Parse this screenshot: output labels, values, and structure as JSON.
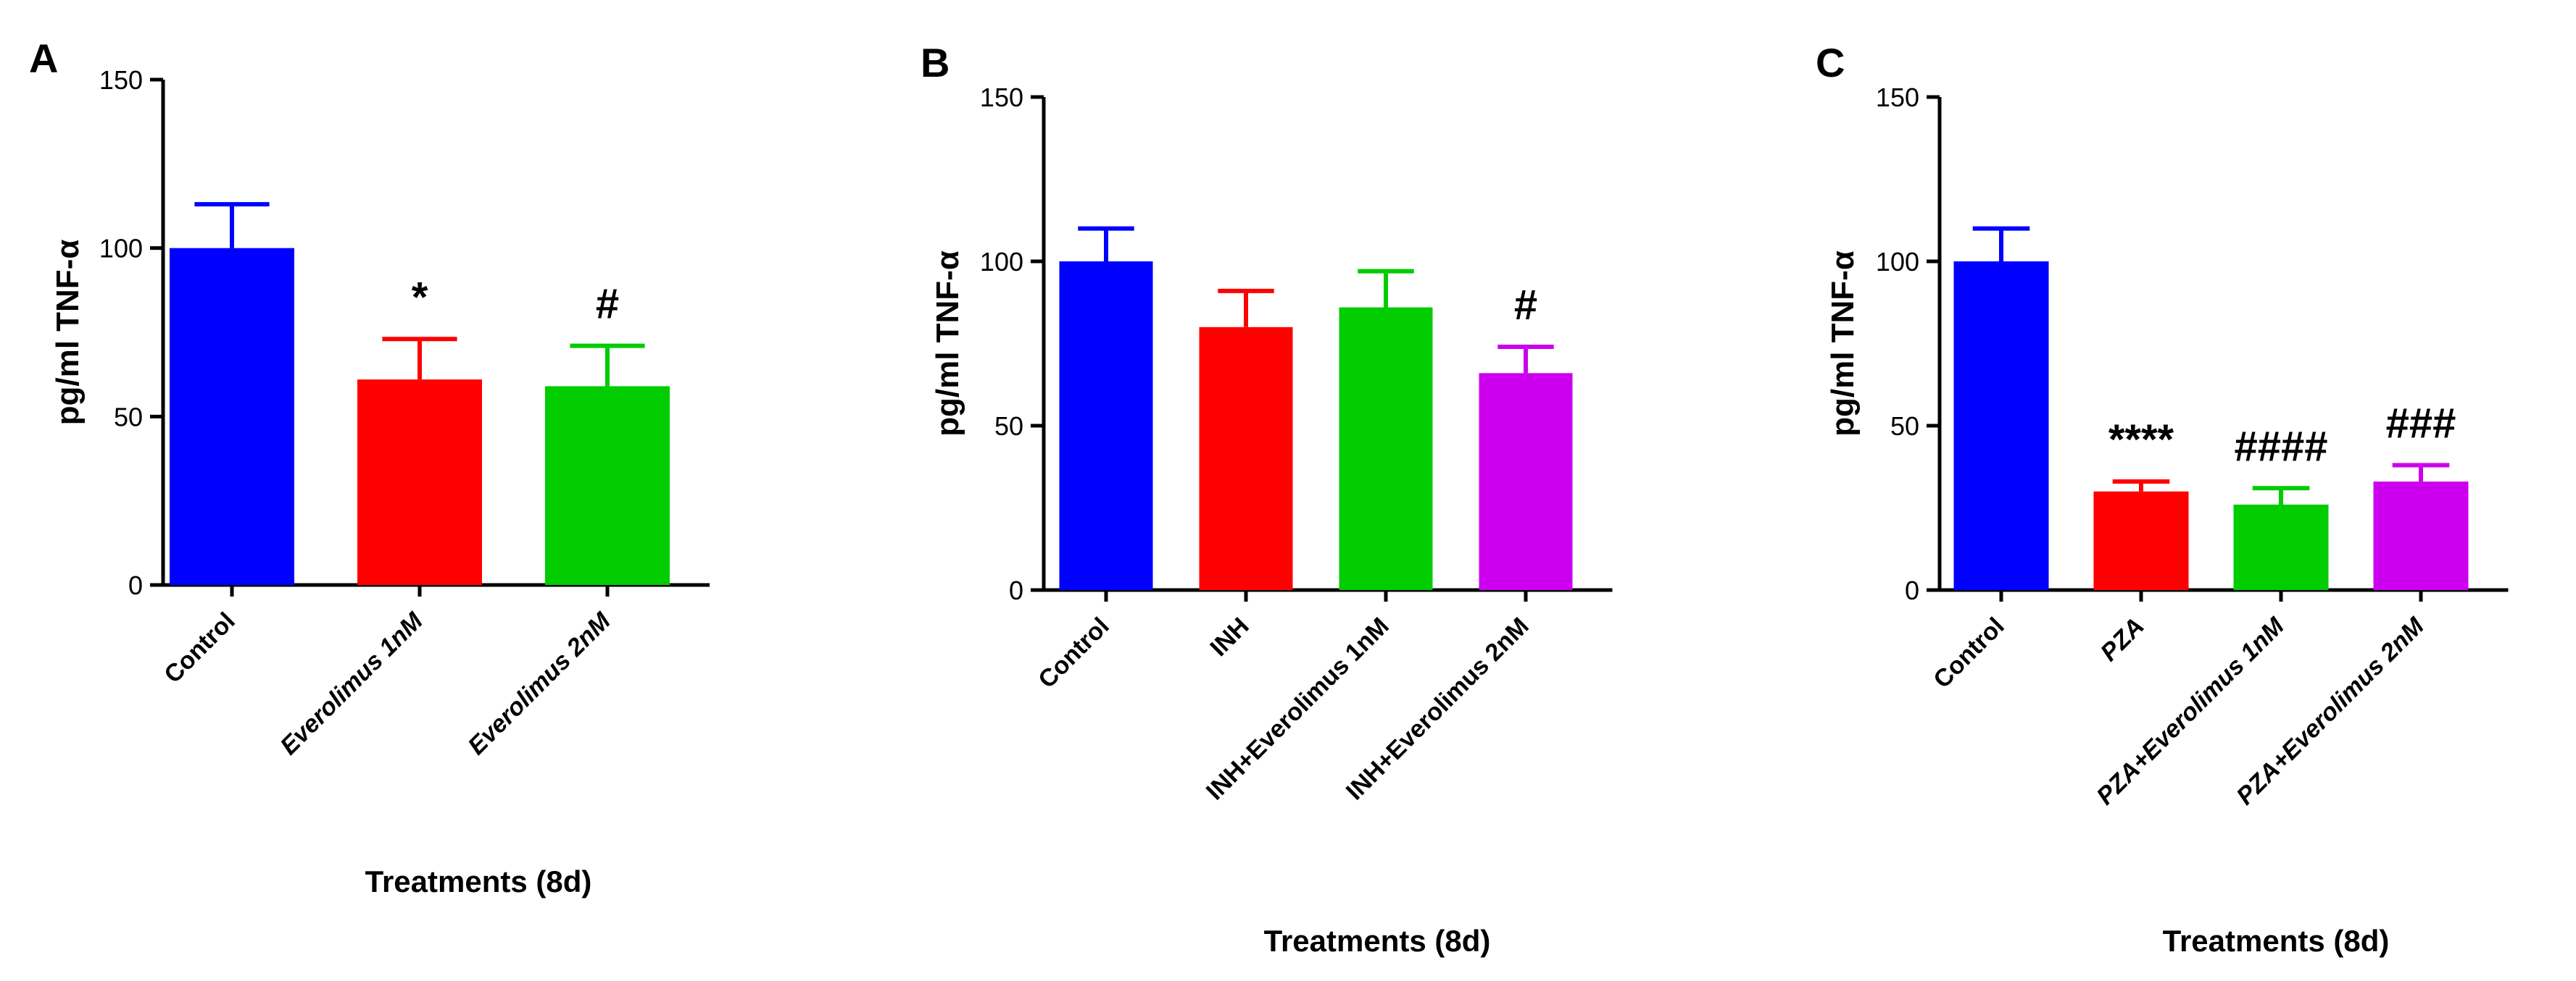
{
  "chart_data": [
    {
      "panel": "A",
      "type": "bar",
      "ylabel": "pg/ml TNF-α",
      "xlabel": "Treatments (8d)",
      "ylim": [
        0,
        150
      ],
      "yticks": [
        0,
        50,
        100,
        150
      ],
      "categories": [
        "Control",
        "Everolimus 1nM",
        "Everolimus 2nM"
      ],
      "values": [
        100,
        61,
        59
      ],
      "errors": [
        13,
        12,
        12
      ],
      "colors": [
        "#0000ff",
        "#ff0000",
        "#00cc00"
      ],
      "annotations": [
        "",
        "*",
        "#"
      ],
      "italic": [
        false,
        true,
        true
      ]
    },
    {
      "panel": "B",
      "type": "bar",
      "ylabel": "pg/ml TNF-α",
      "xlabel": "Treatments (8d)",
      "ylim": [
        0,
        150
      ],
      "yticks": [
        0,
        50,
        100,
        150
      ],
      "categories": [
        "Control",
        "INH",
        "INH+Everolimus 1nM",
        "INH+Everolimus 2nM"
      ],
      "values": [
        100,
        80,
        86,
        66
      ],
      "errors": [
        10,
        11,
        11,
        8
      ],
      "colors": [
        "#0000ff",
        "#ff0000",
        "#00cc00",
        "#cc00ee"
      ],
      "annotations": [
        "",
        "",
        "",
        "#"
      ],
      "italic": [
        false,
        false,
        false,
        false
      ]
    },
    {
      "panel": "C",
      "type": "bar",
      "ylabel": "pg/ml TNF-α",
      "xlabel": "Treatments (8d)",
      "ylim": [
        0,
        150
      ],
      "yticks": [
        0,
        50,
        100,
        150
      ],
      "categories": [
        "Control",
        "PZA",
        "PZA+Everolimus 1nM",
        "PZA+Everolimus 2nM"
      ],
      "values": [
        100,
        30,
        26,
        33
      ],
      "errors": [
        10,
        3,
        5,
        5
      ],
      "colors": [
        "#0000ff",
        "#ff0000",
        "#00cc00",
        "#cc00ee"
      ],
      "annotations": [
        "",
        "****",
        "####",
        "###"
      ],
      "italic": [
        false,
        true,
        true,
        true
      ]
    }
  ]
}
